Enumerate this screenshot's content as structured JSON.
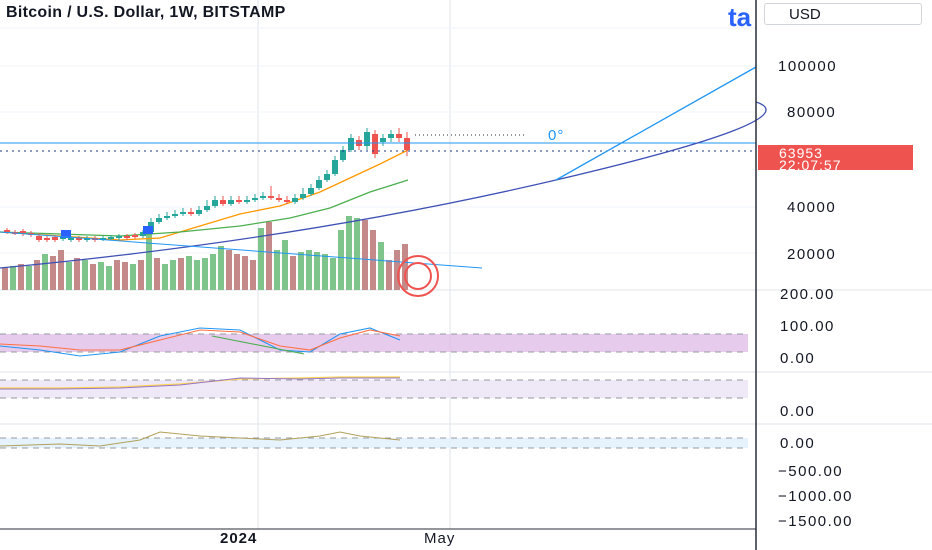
{
  "header": {
    "title": "Bitcoin / U.S. Dollar, 1W, BITSTAMP",
    "logo_text": "ta",
    "currency": "USD"
  },
  "price_axis": {
    "labels": [
      "100000",
      "80000",
      "40000",
      "20000"
    ],
    "current_price": "63953",
    "countdown": "22:07:57"
  },
  "indicator_axes": {
    "rsi_labels": [
      "200.00",
      "100.00",
      "0.00"
    ],
    "second_pane_labels": [
      "0.00"
    ],
    "third_pane_labels": [
      "0.00",
      "−500.00",
      "−1000.00",
      "−1500.00"
    ]
  },
  "drawings": {
    "angle_label": "0°"
  },
  "time_axis": {
    "labels": [
      "2024",
      "May"
    ]
  },
  "colors": {
    "up": "#26a69a",
    "down": "#ef5350",
    "volume_up": "#7fc48a",
    "volume_down": "#c48a8a",
    "drawing_blue": "#2196f3",
    "band_purple": "#e1bee7"
  }
}
